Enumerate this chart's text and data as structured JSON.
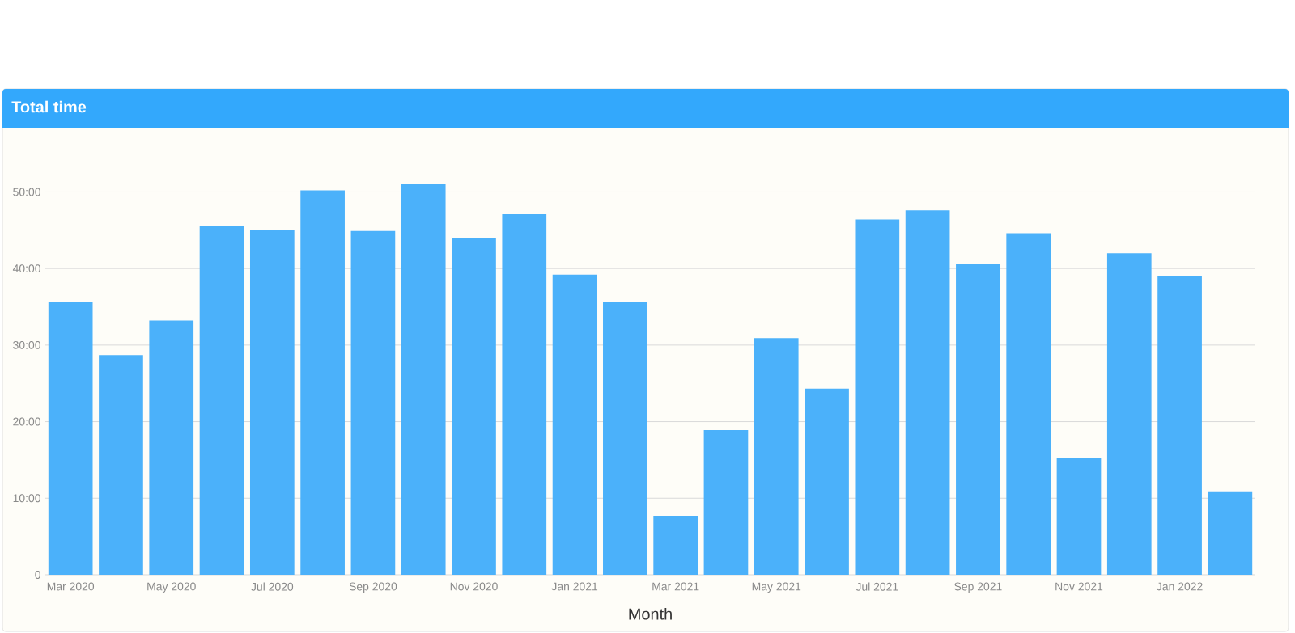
{
  "chart_data": {
    "type": "bar",
    "title": "Total time",
    "xlabel": "Month",
    "categories": [
      "Mar 2020",
      null,
      "May 2020",
      null,
      "Jul 2020",
      null,
      "Sep 2020",
      null,
      "Nov 2020",
      null,
      "Jan 2021",
      null,
      "Mar 2021",
      null,
      "May 2021",
      null,
      "Jul 2021",
      null,
      "Sep 2021",
      null,
      "Nov 2021",
      null,
      "Jan 2022",
      null
    ],
    "values": [
      35.6,
      28.7,
      33.2,
      45.5,
      45.0,
      50.2,
      44.9,
      51.0,
      44.0,
      47.1,
      39.2,
      35.6,
      7.7,
      18.9,
      30.9,
      24.3,
      46.4,
      47.6,
      40.6,
      44.6,
      15.2,
      42.0,
      39.0,
      10.9
    ],
    "color": "#4bb1fa",
    "ylim": [
      0,
      51
    ],
    "yticks": [
      0,
      {
        "value": 10,
        "label": "10:00"
      },
      {
        "value": 20,
        "label": "20:00"
      },
      {
        "value": 30,
        "label": "30:00"
      },
      {
        "value": 40,
        "label": "40:00"
      },
      {
        "value": 50,
        "label": "50:00"
      }
    ],
    "grid": "y"
  }
}
